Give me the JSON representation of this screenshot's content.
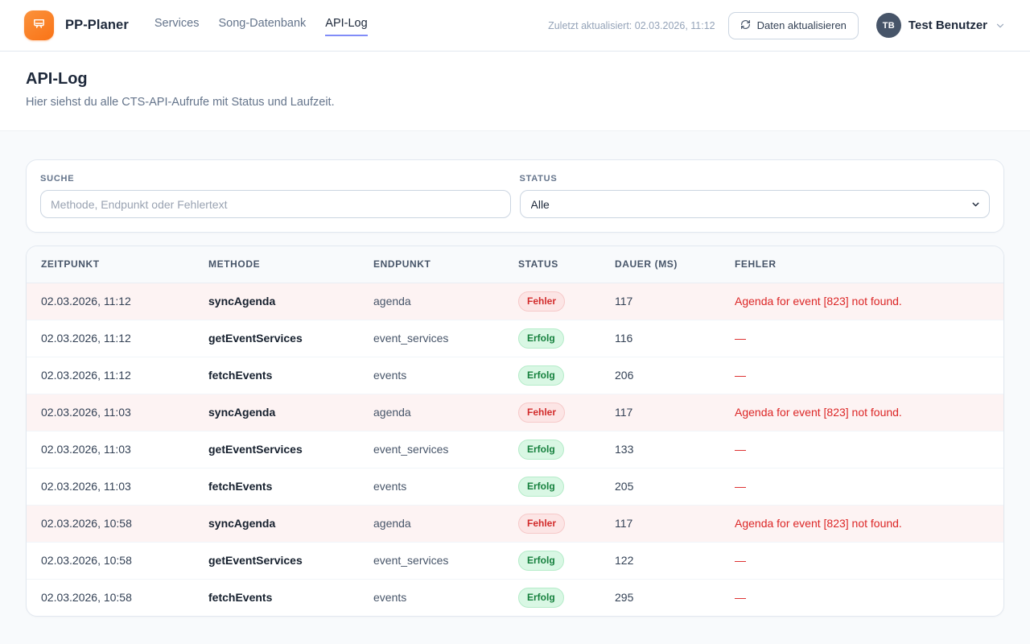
{
  "header": {
    "brand": "PP-Planer",
    "nav": [
      {
        "label": "Services",
        "active": false
      },
      {
        "label": "Song-Datenbank",
        "active": false
      },
      {
        "label": "API-Log",
        "active": true
      }
    ],
    "last_updated": "Zuletzt aktualisiert: 02.03.2026, 11:12",
    "refresh_label": "Daten aktualisieren",
    "user": {
      "initials": "TB",
      "name": "Test Benutzer"
    }
  },
  "page": {
    "title": "API-Log",
    "subtitle": "Hier siehst du alle CTS-API-Aufrufe mit Status und Laufzeit."
  },
  "filters": {
    "search_label": "Suche",
    "search_placeholder": "Methode, Endpunkt oder Fehlertext",
    "search_value": "",
    "status_label": "Status",
    "status_value": "Alle"
  },
  "table": {
    "columns": [
      "Zeitpunkt",
      "Methode",
      "Endpunkt",
      "Status",
      "Dauer (ms)",
      "Fehler"
    ],
    "empty_error_placeholder": "—",
    "rows": [
      {
        "zeitpunkt": "02.03.2026, 11:12",
        "methode": "syncAgenda",
        "endpunkt": "agenda",
        "status": "Fehler",
        "status_type": "error",
        "dauer": "117",
        "fehler": "Agenda for event [823] not found."
      },
      {
        "zeitpunkt": "02.03.2026, 11:12",
        "methode": "getEventServices",
        "endpunkt": "event_services",
        "status": "Erfolg",
        "status_type": "success",
        "dauer": "116",
        "fehler": null
      },
      {
        "zeitpunkt": "02.03.2026, 11:12",
        "methode": "fetchEvents",
        "endpunkt": "events",
        "status": "Erfolg",
        "status_type": "success",
        "dauer": "206",
        "fehler": null
      },
      {
        "zeitpunkt": "02.03.2026, 11:03",
        "methode": "syncAgenda",
        "endpunkt": "agenda",
        "status": "Fehler",
        "status_type": "error",
        "dauer": "117",
        "fehler": "Agenda for event [823] not found."
      },
      {
        "zeitpunkt": "02.03.2026, 11:03",
        "methode": "getEventServices",
        "endpunkt": "event_services",
        "status": "Erfolg",
        "status_type": "success",
        "dauer": "133",
        "fehler": null
      },
      {
        "zeitpunkt": "02.03.2026, 11:03",
        "methode": "fetchEvents",
        "endpunkt": "events",
        "status": "Erfolg",
        "status_type": "success",
        "dauer": "205",
        "fehler": null
      },
      {
        "zeitpunkt": "02.03.2026, 10:58",
        "methode": "syncAgenda",
        "endpunkt": "agenda",
        "status": "Fehler",
        "status_type": "error",
        "dauer": "117",
        "fehler": "Agenda for event [823] not found."
      },
      {
        "zeitpunkt": "02.03.2026, 10:58",
        "methode": "getEventServices",
        "endpunkt": "event_services",
        "status": "Erfolg",
        "status_type": "success",
        "dauer": "122",
        "fehler": null
      },
      {
        "zeitpunkt": "02.03.2026, 10:58",
        "methode": "fetchEvents",
        "endpunkt": "events",
        "status": "Erfolg",
        "status_type": "success",
        "dauer": "295",
        "fehler": null
      }
    ]
  },
  "colors": {
    "accent_orange": "#f97316",
    "nav_active_underline": "#818cf8",
    "error_text": "#dc2626",
    "error_row_bg": "#fdf3f3",
    "error_badge_bg": "#fce5e5",
    "success_badge_bg": "#d9f7e4",
    "success_text": "#15803d"
  }
}
